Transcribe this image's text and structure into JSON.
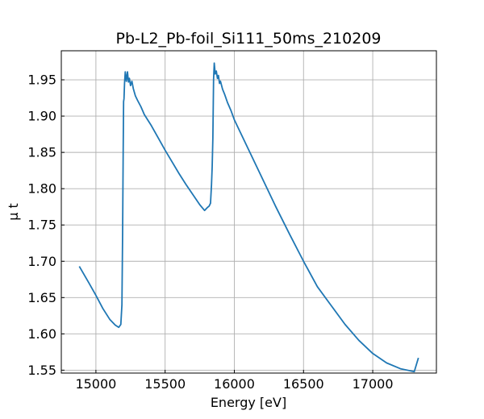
{
  "chart_data": {
    "type": "line",
    "title": "Pb-L2_Pb-foil_Si111_50ms_210209",
    "xlabel": "Energy [eV]",
    "ylabel": "μ t",
    "xlim": [
      14750,
      17460
    ],
    "ylim": [
      1.546,
      1.99
    ],
    "xticks": [
      15000,
      15500,
      16000,
      16500,
      17000
    ],
    "xtick_labels": [
      "15000",
      "15500",
      "16000",
      "16500",
      "17000"
    ],
    "yticks": [
      1.55,
      1.6,
      1.65,
      1.7,
      1.75,
      1.8,
      1.85,
      1.9,
      1.95
    ],
    "ytick_labels": [
      "1.55",
      "1.60",
      "1.65",
      "1.70",
      "1.75",
      "1.80",
      "1.85",
      "1.90",
      "1.95"
    ],
    "grid": true,
    "tick_direction": "in",
    "line_color": "#1f77b4",
    "series": [
      {
        "x": [
          14880,
          14950,
          15000,
          15050,
          15100,
          15140,
          15165,
          15180,
          15188,
          15193,
          15197,
          15200,
          15203,
          15207,
          15212,
          15220,
          15228,
          15235,
          15242,
          15250,
          15260,
          15270,
          15285,
          15300,
          15325,
          15350,
          15400,
          15450,
          15500,
          15550,
          15600,
          15650,
          15700,
          15750,
          15785,
          15805,
          15818,
          15828,
          15835,
          15840,
          15845,
          15850,
          15855,
          15862,
          15870,
          15878,
          15885,
          15893,
          15900,
          15915,
          15930,
          15950,
          15975,
          16000,
          16100,
          16200,
          16300,
          16400,
          16500,
          16600,
          16700,
          16800,
          16900,
          17000,
          17100,
          17200,
          17300,
          17330
        ],
        "y": [
          1.693,
          1.67,
          1.653,
          1.635,
          1.62,
          1.612,
          1.609,
          1.613,
          1.64,
          1.74,
          1.85,
          1.92,
          1.924,
          1.946,
          1.961,
          1.948,
          1.961,
          1.947,
          1.952,
          1.942,
          1.948,
          1.938,
          1.928,
          1.922,
          1.913,
          1.902,
          1.887,
          1.87,
          1.853,
          1.837,
          1.821,
          1.806,
          1.792,
          1.778,
          1.77,
          1.774,
          1.776,
          1.78,
          1.805,
          1.83,
          1.87,
          1.95,
          1.973,
          1.958,
          1.962,
          1.952,
          1.956,
          1.945,
          1.948,
          1.937,
          1.93,
          1.919,
          1.908,
          1.895,
          1.855,
          1.815,
          1.775,
          1.737,
          1.7,
          1.665,
          1.639,
          1.613,
          1.591,
          1.573,
          1.56,
          1.552,
          1.548,
          1.567
        ]
      }
    ]
  }
}
